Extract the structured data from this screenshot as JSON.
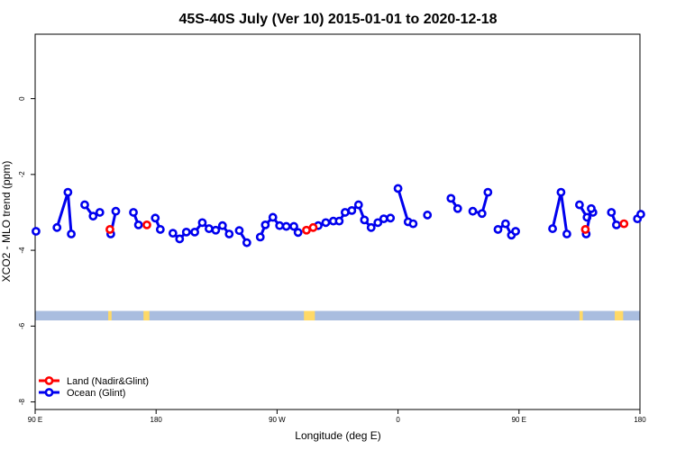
{
  "chart_data": {
    "type": "line",
    "title": "45S-40S July (Ver 10)   2015-01-01 to 2020-12-18",
    "xlabel": "Longitude (deg E)",
    "ylabel": "XCO2 - MLO trend (ppm)",
    "xlim": [
      90,
      450
    ],
    "ylim": [
      -8.2,
      1.7
    ],
    "x_ticks": [
      {
        "value": 90,
        "label": "90 E"
      },
      {
        "value": 162,
        "label": "180"
      },
      {
        "value": 234,
        "label": "90 W"
      },
      {
        "value": 306,
        "label": "0"
      },
      {
        "value": 378,
        "label": "90 E"
      },
      {
        "value": 450,
        "label": "180"
      }
    ],
    "y_ticks": [
      {
        "value": 0,
        "label": "0"
      },
      {
        "value": -2,
        "label": "-2"
      },
      {
        "value": -4,
        "label": "-4"
      },
      {
        "value": -6,
        "label": "-6"
      },
      {
        "value": -8,
        "label": "-8"
      }
    ],
    "legend": {
      "placement": "bottom-left",
      "entries": [
        {
          "label": "Land (Nadir&Glint)",
          "color": "#ff0000"
        },
        {
          "label": "Ocean (Glint)",
          "color": "#0000ee"
        }
      ]
    },
    "grid": false,
    "series": [
      {
        "name": "Land (Nadir&Glint)",
        "color": "#ff0000",
        "points": [
          [
            134.5,
            -3.45
          ],
          [
            156.5,
            -3.33
          ],
          [
            251.5,
            -3.47
          ],
          [
            255.5,
            -3.4
          ],
          [
            417.5,
            -3.45
          ],
          [
            440.5,
            -3.3
          ]
        ]
      },
      {
        "name": "Ocean (Glint)",
        "color": "#0000ee",
        "segments": [
          [
            [
              90.5,
              -3.5
            ]
          ],
          [
            [
              103,
              -3.4
            ],
            [
              109.5,
              -2.47
            ],
            [
              111.5,
              -3.57
            ]
          ],
          [
            [
              119.5,
              -2.8
            ],
            [
              124.5,
              -3.1
            ],
            [
              128.5,
              -3.0
            ]
          ],
          [
            [
              135,
              -3.57
            ],
            [
              138,
              -2.97
            ]
          ],
          [
            [
              148.5,
              -3.0
            ],
            [
              151.5,
              -3.33
            ]
          ],
          [
            [
              161.5,
              -3.15
            ],
            [
              164.5,
              -3.45
            ]
          ],
          [
            [
              172,
              -3.55
            ],
            [
              176,
              -3.7
            ],
            [
              180,
              -3.52
            ],
            [
              185,
              -3.52
            ],
            [
              189.5,
              -3.27
            ],
            [
              193.5,
              -3.43
            ],
            [
              197.5,
              -3.47
            ],
            [
              201.5,
              -3.35
            ],
            [
              205.5,
              -3.57
            ]
          ],
          [
            [
              211.5,
              -3.48
            ],
            [
              216,
              -3.8
            ]
          ],
          [
            [
              224,
              -3.65
            ],
            [
              227,
              -3.33
            ],
            [
              231.5,
              -3.13
            ],
            [
              235.5,
              -3.35
            ],
            [
              239.5,
              -3.37
            ],
            [
              244,
              -3.37
            ],
            [
              246.5,
              -3.53
            ]
          ],
          [
            [
              258.5,
              -3.35
            ],
            [
              263,
              -3.27
            ],
            [
              267.5,
              -3.23
            ],
            [
              271,
              -3.23
            ],
            [
              274.5,
              -3.0
            ],
            [
              278.5,
              -2.95
            ],
            [
              282.5,
              -2.8
            ],
            [
              286,
              -3.2
            ],
            [
              290,
              -3.4
            ],
            [
              294,
              -3.27
            ],
            [
              297.5,
              -3.17
            ],
            [
              301.5,
              -3.15
            ]
          ],
          [
            [
              306,
              -2.37
            ],
            [
              312,
              -3.25
            ],
            [
              315,
              -3.3
            ]
          ],
          [
            [
              323.5,
              -3.07
            ]
          ],
          [
            [
              337.5,
              -2.63
            ],
            [
              341.5,
              -2.9
            ]
          ],
          [
            [
              350.5,
              -2.97
            ],
            [
              356,
              -3.03
            ],
            [
              359.5,
              -2.47
            ]
          ],
          [
            [
              365.5,
              -3.45
            ],
            [
              370,
              -3.3
            ],
            [
              373.5,
              -3.6
            ],
            [
              376,
              -3.5
            ]
          ],
          [
            [
              398,
              -3.43
            ],
            [
              403,
              -2.47
            ],
            [
              406.5,
              -3.57
            ]
          ],
          [
            [
              414,
              -2.8
            ],
            [
              418.5,
              -3.13
            ],
            [
              422,
              -3.0
            ]
          ],
          [
            [
              418,
              -3.57
            ],
            [
              421,
              -2.9
            ]
          ],
          [
            [
              433,
              -3.0
            ],
            [
              436,
              -3.33
            ]
          ],
          [
            [
              448.5,
              -3.17
            ],
            [
              450.5,
              -3.05
            ]
          ]
        ]
      }
    ],
    "land_ocean_strip": {
      "y_range": [
        -5.85,
        -5.6
      ],
      "ocean_color": "#a9bddf",
      "land_color": "#ffd966",
      "land_spans": [
        [
          133.5,
          135.5
        ],
        [
          154.5,
          158
        ],
        [
          250,
          256.5
        ],
        [
          414,
          416
        ],
        [
          435,
          440
        ]
      ]
    }
  }
}
